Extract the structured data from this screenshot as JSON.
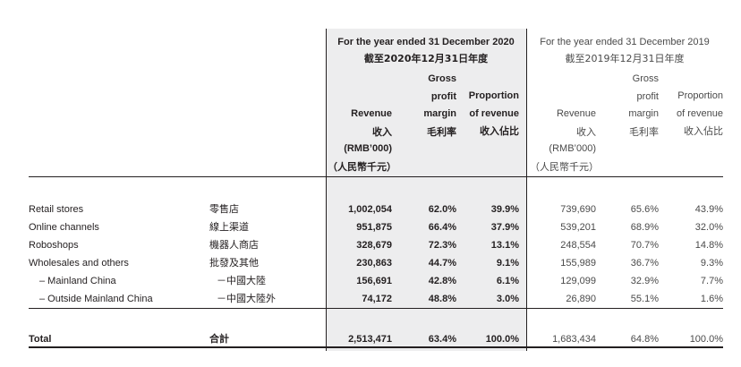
{
  "header": {
    "y2020_title_en": "For the year ended 31 December 2020",
    "y2020_title_zh": "截至2020年12月31日年度",
    "y2019_title_en": "For the year ended 31 December 2019",
    "y2019_title_zh": "截至2019年12月31日年度",
    "revenue_lines": [
      "Revenue",
      "收入",
      "(RMB’000)",
      "（人民幣千元）"
    ],
    "gross_lines": [
      "Gross",
      "profit",
      "margin",
      "毛利率"
    ],
    "proportion_lines": [
      "Proportion",
      "of revenue",
      "收入佔比"
    ]
  },
  "rows": [
    {
      "en": "Retail stores",
      "zh": "零售店",
      "rev2020": "1,002,054",
      "gpm2020": "62.0%",
      "prop2020": "39.9%",
      "rev2019": "739,690",
      "gpm2019": "65.6%",
      "prop2019": "43.9%"
    },
    {
      "en": "Online channels",
      "zh": "線上渠道",
      "rev2020": "951,875",
      "gpm2020": "66.4%",
      "prop2020": "37.9%",
      "rev2019": "539,201",
      "gpm2019": "68.9%",
      "prop2019": "32.0%"
    },
    {
      "en": "Roboshops",
      "zh": "機器人商店",
      "rev2020": "328,679",
      "gpm2020": "72.3%",
      "prop2020": "13.1%",
      "rev2019": "248,554",
      "gpm2019": "70.7%",
      "prop2019": "14.8%"
    },
    {
      "en": "Wholesales and others",
      "zh": "批發及其他",
      "rev2020": "230,863",
      "gpm2020": "44.7%",
      "prop2020": "9.1%",
      "rev2019": "155,989",
      "gpm2019": "36.7%",
      "prop2019": "9.3%"
    },
    {
      "en": "– Mainland China",
      "zh": "－中國大陸",
      "rev2020": "156,691",
      "gpm2020": "42.8%",
      "prop2020": "6.1%",
      "rev2019": "129,099",
      "gpm2019": "32.9%",
      "prop2019": "7.7%"
    },
    {
      "en": "– Outside Mainland China",
      "zh": "－中國大陸外",
      "rev2020": "74,172",
      "gpm2020": "48.8%",
      "prop2020": "3.0%",
      "rev2019": "26,890",
      "gpm2019": "55.1%",
      "prop2019": "1.6%"
    }
  ],
  "total": {
    "en": "Total",
    "zh": "合計",
    "rev2020": "2,513,471",
    "gpm2020": "63.4%",
    "prop2020": "100.0%",
    "rev2019": "1,683,434",
    "gpm2019": "64.8%",
    "prop2019": "100.0%"
  }
}
